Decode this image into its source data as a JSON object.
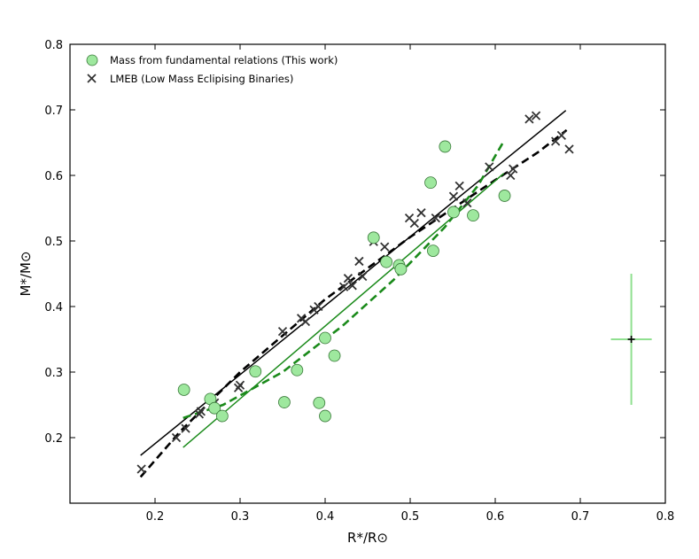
{
  "chart_data": {
    "type": "scatter",
    "xlabel": "R*/R⊙",
    "ylabel": "M*/M⊙",
    "xlim": [
      0.1,
      0.8
    ],
    "ylim": [
      0.1,
      0.8
    ],
    "xticks": [
      "0.2",
      "0.3",
      "0.4",
      "0.5",
      "0.6",
      "0.7",
      "0.8"
    ],
    "xtick_values": [
      0.2,
      0.3,
      0.4,
      0.5,
      0.6,
      0.7,
      0.8
    ],
    "yticks": [
      "0.2",
      "0.3",
      "0.4",
      "0.5",
      "0.6",
      "0.7",
      "0.8"
    ],
    "ytick_values": [
      0.2,
      0.3,
      0.4,
      0.5,
      0.6,
      0.7,
      0.8
    ],
    "grid": false,
    "legend_position": "top-left",
    "colors": {
      "this_work_fill": "#9ee89e",
      "this_work_edge": "#3a7a3a",
      "lmeb": "#333333",
      "green_fit": "#1a8a1a",
      "black_fit": "#000000",
      "error_bar": "#90e090"
    },
    "series": [
      {
        "name": "Mass from fundamental relations (This work)",
        "marker": "circle",
        "points": [
          [
            0.234,
            0.273
          ],
          [
            0.265,
            0.259
          ],
          [
            0.27,
            0.245
          ],
          [
            0.279,
            0.233
          ],
          [
            0.318,
            0.301
          ],
          [
            0.352,
            0.254
          ],
          [
            0.367,
            0.303
          ],
          [
            0.393,
            0.253
          ],
          [
            0.4,
            0.233
          ],
          [
            0.4,
            0.352
          ],
          [
            0.411,
            0.325
          ],
          [
            0.457,
            0.505
          ],
          [
            0.472,
            0.468
          ],
          [
            0.487,
            0.463
          ],
          [
            0.489,
            0.457
          ],
          [
            0.524,
            0.589
          ],
          [
            0.527,
            0.485
          ],
          [
            0.541,
            0.644
          ],
          [
            0.551,
            0.544
          ],
          [
            0.574,
            0.539
          ],
          [
            0.611,
            0.569
          ]
        ]
      },
      {
        "name": "LMEB (Low Mass Eclipising Binaries)",
        "marker": "x",
        "points": [
          [
            0.184,
            0.152
          ],
          [
            0.225,
            0.2
          ],
          [
            0.236,
            0.214
          ],
          [
            0.252,
            0.236
          ],
          [
            0.254,
            0.24
          ],
          [
            0.27,
            0.253
          ],
          [
            0.298,
            0.276
          ],
          [
            0.3,
            0.28
          ],
          [
            0.35,
            0.362
          ],
          [
            0.372,
            0.382
          ],
          [
            0.377,
            0.377
          ],
          [
            0.387,
            0.395
          ],
          [
            0.392,
            0.4
          ],
          [
            0.422,
            0.43
          ],
          [
            0.427,
            0.443
          ],
          [
            0.432,
            0.432
          ],
          [
            0.44,
            0.469
          ],
          [
            0.444,
            0.446
          ],
          [
            0.457,
            0.499
          ],
          [
            0.47,
            0.491
          ],
          [
            0.499,
            0.535
          ],
          [
            0.505,
            0.527
          ],
          [
            0.513,
            0.543
          ],
          [
            0.53,
            0.535
          ],
          [
            0.551,
            0.568
          ],
          [
            0.558,
            0.584
          ],
          [
            0.567,
            0.558
          ],
          [
            0.593,
            0.613
          ],
          [
            0.618,
            0.6
          ],
          [
            0.621,
            0.61
          ],
          [
            0.64,
            0.686
          ],
          [
            0.648,
            0.691
          ],
          [
            0.671,
            0.652
          ],
          [
            0.678,
            0.661
          ],
          [
            0.687,
            0.64
          ]
        ]
      }
    ],
    "fit_lines": [
      {
        "style": "solid",
        "color": "#000000",
        "points": [
          [
            0.183,
            0.173
          ],
          [
            0.683,
            0.699
          ]
        ]
      },
      {
        "style": "dashed",
        "color": "#000000",
        "points": [
          [
            0.183,
            0.14
          ],
          [
            0.23,
            0.21
          ],
          [
            0.3,
            0.3
          ],
          [
            0.4,
            0.411
          ],
          [
            0.5,
            0.506
          ],
          [
            0.6,
            0.593
          ],
          [
            0.65,
            0.635
          ],
          [
            0.684,
            0.669
          ]
        ]
      },
      {
        "style": "solid",
        "color": "#1a8a1a",
        "points": [
          [
            0.233,
            0.185
          ],
          [
            0.61,
            0.603
          ]
        ]
      },
      {
        "style": "dashed",
        "color": "#1a8a1a",
        "points": [
          [
            0.233,
            0.23
          ],
          [
            0.28,
            0.25
          ],
          [
            0.35,
            0.3
          ],
          [
            0.42,
            0.37
          ],
          [
            0.48,
            0.44
          ],
          [
            0.54,
            0.52
          ],
          [
            0.58,
            0.585
          ],
          [
            0.61,
            0.652
          ]
        ]
      }
    ],
    "error_marker": {
      "x": 0.76,
      "y": 0.35,
      "xerr": 0.024,
      "yerr": 0.1
    }
  }
}
